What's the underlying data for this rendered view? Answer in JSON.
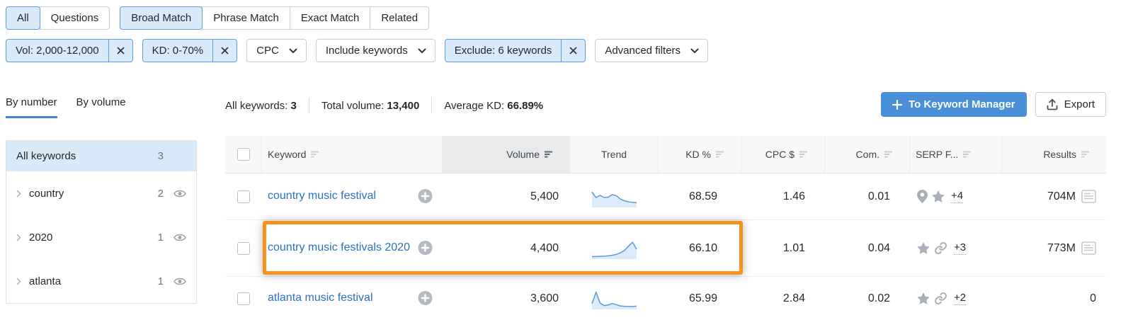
{
  "colors": {
    "accent_blue": "#4a90d8",
    "pill_bg": "#d9eafa",
    "pill_border": "#58a0e3",
    "link_blue": "#2b6fc6",
    "highlight_orange": "#f6921e",
    "spark_line": "#5b9bd8",
    "spark_fill": "#dcebfa"
  },
  "filters": {
    "type_tabs": [
      {
        "label": "All",
        "selected": true
      },
      {
        "label": "Questions",
        "selected": false
      }
    ],
    "match_tabs": [
      {
        "label": "Broad Match",
        "selected": true
      },
      {
        "label": "Phrase Match",
        "selected": false
      },
      {
        "label": "Exact Match",
        "selected": false
      },
      {
        "label": "Related",
        "selected": false
      }
    ],
    "pills": [
      {
        "label": "Vol: 2,000-12,000",
        "active": true,
        "dismissible": true
      },
      {
        "label": "KD: 0-70%",
        "active": true,
        "dismissible": true
      },
      {
        "label": "CPC",
        "active": false,
        "dropdown": true
      },
      {
        "label": "Include keywords",
        "active": false,
        "dropdown": true
      },
      {
        "label": "Exclude: 6 keywords",
        "active": true,
        "dismissible": true
      },
      {
        "label": "Advanced filters",
        "active": false,
        "dropdown": true
      }
    ]
  },
  "toolbar": {
    "view_tabs": [
      {
        "label": "By number",
        "active": true
      },
      {
        "label": "By volume",
        "active": false
      }
    ],
    "stats": [
      {
        "label": "All keywords:",
        "value": "3"
      },
      {
        "label": "Total volume:",
        "value": "13,400"
      },
      {
        "label": "Average KD:",
        "value": "66.89%"
      }
    ],
    "keyword_manager_label": "To Keyword Manager",
    "export_label": "Export"
  },
  "sidebar": {
    "header": {
      "label": "All keywords",
      "count": "3"
    },
    "groups": [
      {
        "label": "country",
        "count": "2"
      },
      {
        "label": "2020",
        "count": "1"
      },
      {
        "label": "atlanta",
        "count": "1"
      }
    ]
  },
  "table": {
    "columns": [
      {
        "label": "Keyword",
        "sortable": true,
        "sorted": false,
        "align": "al"
      },
      {
        "label": "Volume",
        "sortable": true,
        "sorted": true,
        "align": "ar"
      },
      {
        "label": "Trend",
        "sortable": false,
        "sorted": false,
        "align": "ac"
      },
      {
        "label": "KD %",
        "sortable": true,
        "sorted": false,
        "align": "ar"
      },
      {
        "label": "CPC $",
        "sortable": true,
        "sorted": false,
        "align": "ar"
      },
      {
        "label": "Com.",
        "sortable": true,
        "sorted": false,
        "align": "ar"
      },
      {
        "label": "SERP F...",
        "sortable": true,
        "sorted": false,
        "align": "al"
      },
      {
        "label": "Results",
        "sortable": true,
        "sorted": false,
        "align": "ar"
      }
    ],
    "rows": [
      {
        "keyword": "country music festival",
        "volume": "5,400",
        "trend": [
          0.8,
          0.5,
          0.62,
          0.5,
          0.52,
          0.66,
          0.6,
          0.42,
          0.32,
          0.27,
          0.24,
          0.22
        ],
        "kd": "68.59",
        "cpc": "1.46",
        "com": "0.01",
        "serp_icons": [
          "pin",
          "star"
        ],
        "serp_more": "+4",
        "results": "704M",
        "results_icon": true,
        "highlight": false
      },
      {
        "keyword": "country music festivals 2020",
        "volume": "4,400",
        "trend": [
          0.1,
          0.1,
          0.11,
          0.12,
          0.14,
          0.17,
          0.22,
          0.3,
          0.44,
          0.66,
          0.88,
          0.5
        ],
        "kd": "66.10",
        "cpc": "1.01",
        "com": "0.04",
        "serp_icons": [
          "star",
          "link"
        ],
        "serp_more": "+3",
        "results": "773M",
        "results_icon": true,
        "highlight": true
      },
      {
        "keyword": "atlanta music festival",
        "volume": "3,600",
        "trend": [
          0.28,
          0.9,
          0.3,
          0.17,
          0.2,
          0.28,
          0.22,
          0.15,
          0.13,
          0.12,
          0.12,
          0.14
        ],
        "kd": "65.99",
        "cpc": "2.84",
        "com": "0.02",
        "serp_icons": [
          "star",
          "link"
        ],
        "serp_more": "+2",
        "results": "0",
        "results_icon": false,
        "highlight": false
      }
    ]
  }
}
